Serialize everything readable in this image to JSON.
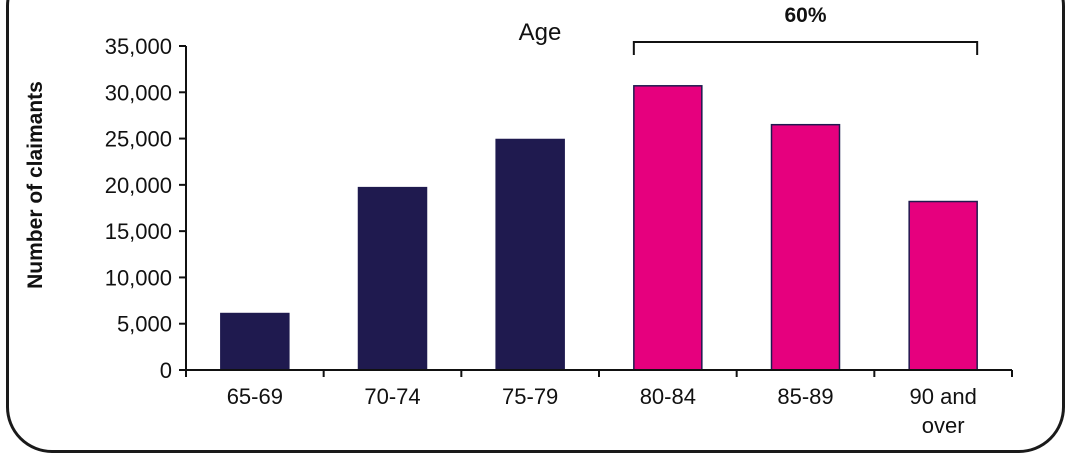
{
  "chart_data": {
    "type": "bar",
    "xlabel": "Age",
    "ylabel": "Number of claimants",
    "ylim": [
      0,
      35000
    ],
    "yticks": [
      "0",
      "5,000",
      "10,000",
      "15,000",
      "20,000",
      "25,000",
      "30,000",
      "35,000"
    ],
    "categories": [
      "65-69",
      "70-74",
      "75-79",
      "80-84",
      "85-89",
      "90 and over"
    ],
    "values": [
      6100,
      19700,
      24900,
      30700,
      26500,
      18200
    ],
    "bar_colors": [
      "#1f1a4f",
      "#1f1a4f",
      "#1f1a4f",
      "#e6007e",
      "#e6007e",
      "#e6007e"
    ],
    "annotation": {
      "label": "60%",
      "span": [
        "80-84",
        "90 and over"
      ]
    },
    "grid": false,
    "legend": "none"
  }
}
